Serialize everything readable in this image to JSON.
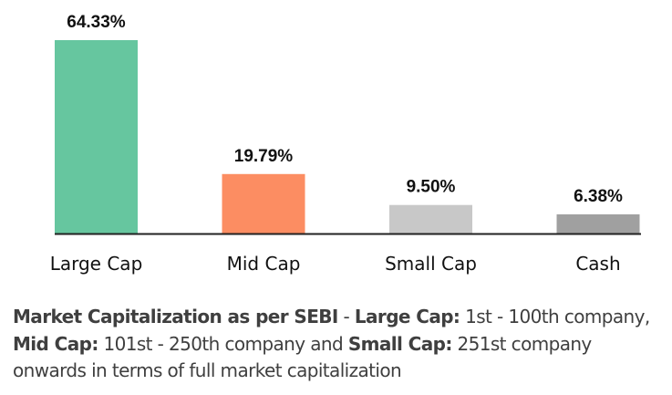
{
  "chart_data": {
    "type": "bar",
    "categories": [
      "Large Cap",
      "Mid Cap",
      "Small Cap",
      "Cash"
    ],
    "values": [
      64.33,
      19.79,
      9.5,
      6.38
    ],
    "data_labels": [
      "64.33%",
      "19.79%",
      "9.50%",
      "6.38%"
    ],
    "colors": [
      "#66c69f",
      "#fc8d62",
      "#c8c8c8",
      "#a0a0a0"
    ],
    "title": "",
    "xlabel": "",
    "ylabel": "",
    "ylim": [
      0,
      64.33
    ],
    "grid": false,
    "legend": "none"
  },
  "footnote": [
    {
      "text": "Market Capitalization as per SEBI",
      "bold": true
    },
    {
      "text": " - ",
      "bold": false
    },
    {
      "text": "Large Cap:",
      "bold": true
    },
    {
      "text": " 1st - 100th company, ",
      "bold": false
    },
    {
      "text": "Mid Cap:",
      "bold": true
    },
    {
      "text": " 101st - 250th company and ",
      "bold": false
    },
    {
      "text": "Small Cap:",
      "bold": true
    },
    {
      "text": " 251st company onwards in terms of full market capitalization",
      "bold": false
    }
  ]
}
